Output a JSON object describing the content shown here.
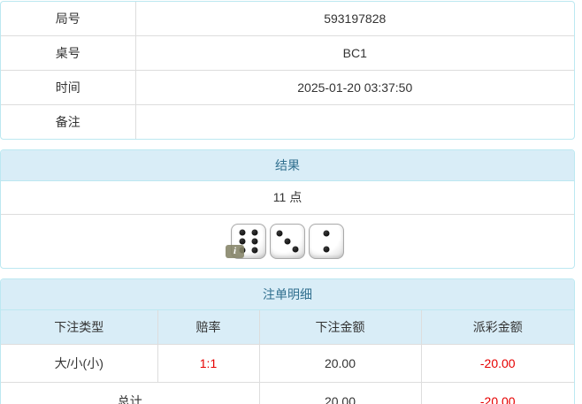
{
  "info_table": {
    "rows": [
      {
        "label": "局号",
        "value": "593197828"
      },
      {
        "label": "桌号",
        "value": "BC1"
      },
      {
        "label": "时间",
        "value": "2025-01-20 03:37:50"
      },
      {
        "label": "备注",
        "value": ""
      }
    ]
  },
  "result_panel": {
    "title": "结果",
    "points": "11 点",
    "dice": [
      6,
      3,
      2
    ],
    "info_badge": "i"
  },
  "bets_panel": {
    "title": "注单明细",
    "columns": [
      "下注类型",
      "赔率",
      "下注金额",
      "派彩金额"
    ],
    "rows": [
      {
        "type": "大/小(小)",
        "odds": "1:1",
        "amount": "20.00",
        "payout": "-20.00"
      }
    ],
    "total": {
      "label": "总计",
      "amount": "20.00",
      "payout": "-20.00"
    }
  },
  "colors": {
    "header_bg": "#d9edf7",
    "header_text": "#31708f",
    "panel_border": "#bce8f1",
    "cell_border": "#dddddd",
    "text": "#333333",
    "negative": "#e60000"
  }
}
